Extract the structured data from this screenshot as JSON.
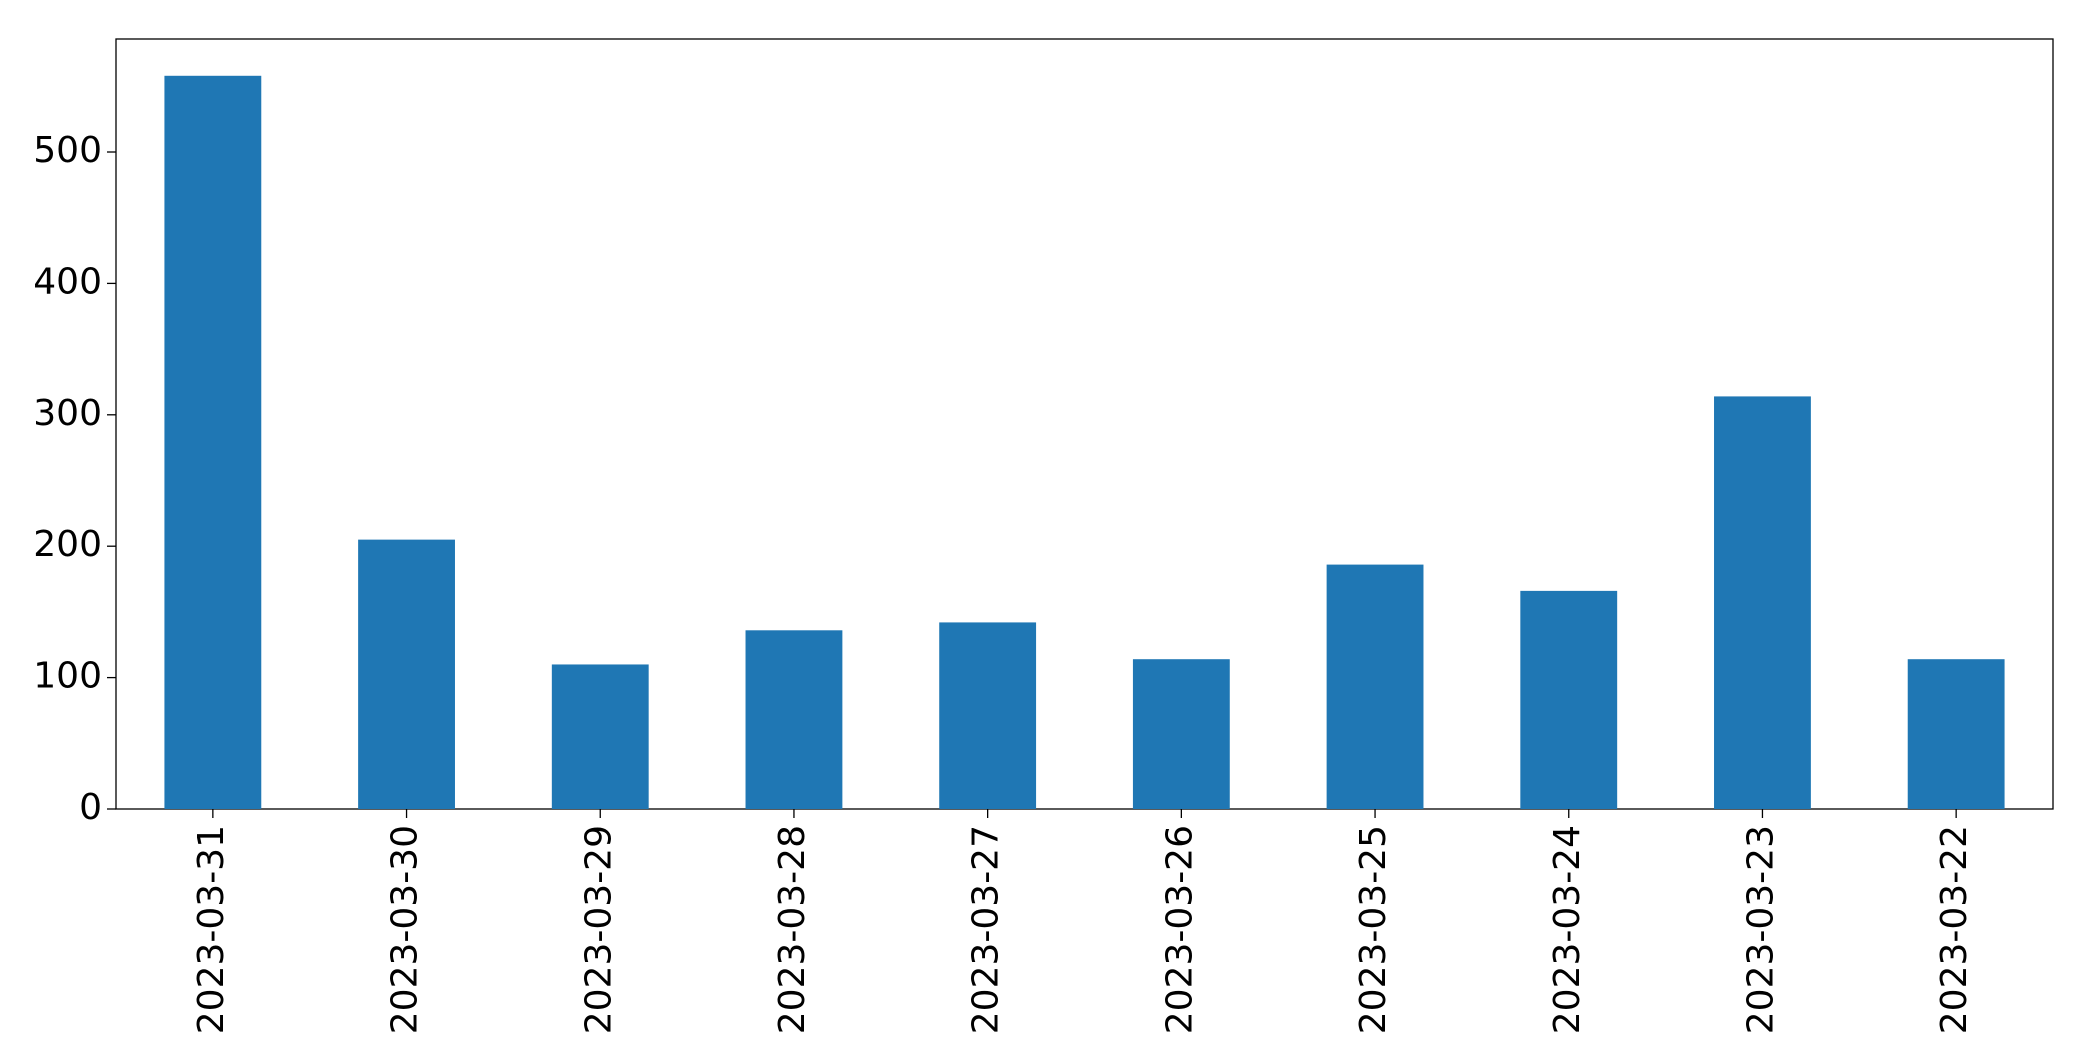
{
  "chart_data": {
    "type": "bar",
    "categories": [
      "2023-03-31",
      "2023-03-30",
      "2023-03-29",
      "2023-03-28",
      "2023-03-27",
      "2023-03-26",
      "2023-03-25",
      "2023-03-24",
      "2023-03-23",
      "2023-03-22"
    ],
    "values": [
      558,
      205,
      110,
      136,
      142,
      114,
      186,
      166,
      314,
      114
    ],
    "color": "#1f77b4",
    "ylim": [
      0,
      586
    ],
    "yticks": [
      0,
      100,
      200,
      300,
      400,
      500
    ],
    "grid": false
  }
}
